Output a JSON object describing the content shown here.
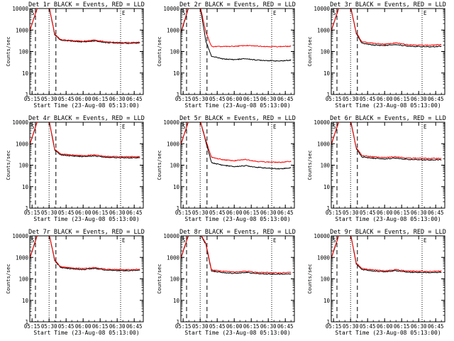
{
  "colors": {
    "events": "#000000",
    "lld": "#ff0000",
    "background": "#ffffff"
  },
  "chart_data": [
    {
      "type": "line",
      "title": "Det 1r BLACK = Events, RED = LLD",
      "xlabel": "Start Time (23-Aug-08 05:13:00)",
      "ylabel": "Counts/sec",
      "y_scale": "log",
      "ylim": [
        1,
        10000
      ],
      "x_ticks": [
        "05:15",
        "05:30",
        "05:45",
        "06:00",
        "06:15",
        "06:30",
        "06:45"
      ],
      "y_ticks": [
        "1",
        "10",
        "100",
        "1000",
        "10000"
      ],
      "markers": [
        "S",
        "E"
      ],
      "x": [
        "05:13",
        "05:20",
        "05:25",
        "05:30",
        "05:35",
        "05:40",
        "05:50",
        "06:00",
        "06:10",
        "06:20",
        "06:30",
        "06:40",
        "06:50"
      ],
      "series": [
        {
          "name": "Events",
          "values": [
            900,
            12000,
            12000,
            12000,
            600,
            340,
            300,
            280,
            310,
            260,
            250,
            240,
            250
          ]
        },
        {
          "name": "LLD",
          "values": [
            950,
            12500,
            12500,
            12500,
            650,
            360,
            320,
            300,
            340,
            280,
            270,
            260,
            270
          ]
        }
      ]
    },
    {
      "type": "line",
      "title": "Det 2r BLACK = Events, RED = LLD",
      "xlabel": "Start Time (23-Aug-08 05:13:00)",
      "ylabel": "Counts/sec",
      "y_scale": "log",
      "ylim": [
        1,
        10000
      ],
      "x_ticks": [
        "05:15",
        "05:30",
        "05:45",
        "06:00",
        "06:15",
        "06:30",
        "06:45"
      ],
      "y_ticks": [
        "1",
        "10",
        "100",
        "1000",
        "10000"
      ],
      "markers": [
        "S",
        "E"
      ],
      "x": [
        "05:13",
        "05:20",
        "05:25",
        "05:30",
        "05:35",
        "05:40",
        "05:50",
        "06:00",
        "06:10",
        "06:20",
        "06:30",
        "06:40",
        "06:50"
      ],
      "series": [
        {
          "name": "Events",
          "values": [
            700,
            12000,
            12000,
            12000,
            300,
            60,
            45,
            42,
            46,
            40,
            38,
            36,
            40
          ]
        },
        {
          "name": "LLD",
          "values": [
            800,
            12500,
            12500,
            12500,
            800,
            170,
            170,
            175,
            190,
            180,
            170,
            170,
            175
          ]
        }
      ]
    },
    {
      "type": "line",
      "title": "Det 3r BLACK = Events, RED = LLD",
      "xlabel": "Start Time (23-Aug-08 05:13:00)",
      "ylabel": "Counts/sec",
      "y_scale": "log",
      "ylim": [
        1,
        10000
      ],
      "x_ticks": [
        "05:15",
        "05:30",
        "05:45",
        "06:00",
        "06:15",
        "06:30",
        "06:45"
      ],
      "y_ticks": [
        "1",
        "10",
        "100",
        "1000",
        "10000"
      ],
      "markers": [
        "S",
        "E"
      ],
      "x": [
        "05:13",
        "05:20",
        "05:25",
        "05:30",
        "05:35",
        "05:40",
        "05:50",
        "06:00",
        "06:10",
        "06:20",
        "06:30",
        "06:40",
        "06:50"
      ],
      "series": [
        {
          "name": "Events",
          "values": [
            900,
            12000,
            12000,
            12000,
            700,
            240,
            200,
            190,
            210,
            180,
            170,
            165,
            175
          ]
        },
        {
          "name": "LLD",
          "values": [
            950,
            12500,
            12500,
            12500,
            750,
            280,
            240,
            220,
            250,
            210,
            200,
            195,
            210
          ]
        }
      ]
    },
    {
      "type": "line",
      "title": "Det 4r BLACK = Events, RED = LLD",
      "xlabel": "Start Time (23-Aug-08 05:13:00)",
      "ylabel": "Counts/sec",
      "y_scale": "log",
      "ylim": [
        1,
        10000
      ],
      "x_ticks": [
        "05:15",
        "05:30",
        "05:45",
        "06:00",
        "06:15",
        "06:30",
        "06:45"
      ],
      "y_ticks": [
        "1",
        "10",
        "100",
        "1000",
        "10000"
      ],
      "markers": [
        "S",
        "E"
      ],
      "x": [
        "05:13",
        "05:20",
        "05:25",
        "05:30",
        "05:35",
        "05:40",
        "05:50",
        "06:00",
        "06:10",
        "06:20",
        "06:30",
        "06:40",
        "06:50"
      ],
      "series": [
        {
          "name": "Events",
          "values": [
            900,
            12000,
            12000,
            12000,
            500,
            300,
            270,
            250,
            270,
            235,
            225,
            220,
            225
          ]
        },
        {
          "name": "LLD",
          "values": [
            950,
            12500,
            12500,
            12500,
            550,
            330,
            300,
            275,
            300,
            260,
            250,
            245,
            250
          ]
        }
      ]
    },
    {
      "type": "line",
      "title": "Det 5r BLACK = Events, RED = LLD",
      "xlabel": "Start Time (23-Aug-08 05:13:00)",
      "ylabel": "Counts/sec",
      "y_scale": "log",
      "ylim": [
        1,
        10000
      ],
      "x_ticks": [
        "05:15",
        "05:30",
        "05:45",
        "06:00",
        "06:15",
        "06:30",
        "06:45"
      ],
      "y_ticks": [
        "1",
        "10",
        "100",
        "1000",
        "10000"
      ],
      "markers": [
        "S",
        "E"
      ],
      "x": [
        "05:13",
        "05:20",
        "05:25",
        "05:30",
        "05:35",
        "05:40",
        "05:50",
        "06:00",
        "06:10",
        "06:20",
        "06:30",
        "06:40",
        "06:50"
      ],
      "series": [
        {
          "name": "Events",
          "values": [
            900,
            12000,
            12000,
            12000,
            1200,
            130,
            100,
            85,
            95,
            80,
            72,
            68,
            75
          ]
        },
        {
          "name": "LLD",
          "values": [
            950,
            12500,
            12500,
            12500,
            1400,
            230,
            180,
            160,
            185,
            150,
            140,
            135,
            150
          ]
        }
      ]
    },
    {
      "type": "line",
      "title": "Det 6r BLACK = Events, RED = LLD",
      "xlabel": "Start Time (23-Aug-08 05:13:00)",
      "ylabel": "Counts/sec",
      "y_scale": "log",
      "ylim": [
        1,
        10000
      ],
      "x_ticks": [
        "05:15",
        "05:30",
        "05:45",
        "06:00",
        "06:15",
        "06:30",
        "06:45"
      ],
      "y_ticks": [
        "1",
        "10",
        "100",
        "1000",
        "10000"
      ],
      "markers": [
        "S",
        "E"
      ],
      "x": [
        "05:13",
        "05:20",
        "05:25",
        "05:30",
        "05:35",
        "05:40",
        "05:50",
        "06:00",
        "06:10",
        "06:20",
        "06:30",
        "06:40",
        "06:50"
      ],
      "series": [
        {
          "name": "Events",
          "values": [
            900,
            12000,
            12000,
            12000,
            600,
            240,
            210,
            195,
            215,
            185,
            180,
            175,
            180
          ]
        },
        {
          "name": "LLD",
          "values": [
            950,
            12500,
            12500,
            12500,
            650,
            280,
            245,
            225,
            250,
            215,
            210,
            205,
            210
          ]
        }
      ]
    },
    {
      "type": "line",
      "title": "Det 7r BLACK = Events, RED = LLD",
      "xlabel": "Start Time (23-Aug-08 05:13:00)",
      "ylabel": "Counts/sec",
      "y_scale": "log",
      "ylim": [
        1,
        10000
      ],
      "x_ticks": [
        "05:15",
        "05:30",
        "05:45",
        "06:00",
        "06:15",
        "06:30",
        "06:45"
      ],
      "y_ticks": [
        "1",
        "10",
        "100",
        "1000",
        "10000"
      ],
      "markers": [
        "S",
        "E"
      ],
      "x": [
        "05:13",
        "05:20",
        "05:25",
        "05:30",
        "05:35",
        "05:40",
        "05:50",
        "06:00",
        "06:10",
        "06:20",
        "06:30",
        "06:40",
        "06:50"
      ],
      "series": [
        {
          "name": "Events",
          "values": [
            900,
            12000,
            12000,
            12000,
            700,
            340,
            290,
            270,
            310,
            255,
            245,
            240,
            255
          ]
        },
        {
          "name": "LLD",
          "values": [
            950,
            12500,
            12500,
            12500,
            750,
            370,
            320,
            300,
            340,
            280,
            270,
            265,
            280
          ]
        }
      ]
    },
    {
      "type": "line",
      "title": "Det 8r BLACK = Events, RED = LLD",
      "xlabel": "Start Time (23-Aug-08 05:13:00)",
      "ylabel": "Counts/sec",
      "y_scale": "log",
      "ylim": [
        1,
        10000
      ],
      "x_ticks": [
        "05:15",
        "05:30",
        "05:45",
        "06:00",
        "06:15",
        "06:30",
        "06:45"
      ],
      "y_ticks": [
        "1",
        "10",
        "100",
        "1000",
        "10000"
      ],
      "markers": [
        "S",
        "E"
      ],
      "x": [
        "05:13",
        "05:20",
        "05:25",
        "05:30",
        "05:35",
        "05:40",
        "05:50",
        "06:00",
        "06:10",
        "06:20",
        "06:30",
        "06:40",
        "06:50"
      ],
      "series": [
        {
          "name": "Events",
          "values": [
            900,
            12000,
            12000,
            12000,
            4000,
            230,
            195,
            180,
            200,
            175,
            168,
            165,
            170
          ]
        },
        {
          "name": "LLD",
          "values": [
            950,
            12500,
            12500,
            12500,
            4500,
            260,
            225,
            210,
            230,
            200,
            195,
            190,
            200
          ]
        }
      ]
    },
    {
      "type": "line",
      "title": "Det 9r BLACK = Events, RED = LLD",
      "xlabel": "Start Time (23-Aug-08 05:13:00)",
      "ylabel": "Counts/sec",
      "y_scale": "log",
      "ylim": [
        1,
        10000
      ],
      "x_ticks": [
        "05:15",
        "05:30",
        "05:45",
        "06:00",
        "06:15",
        "06:30",
        "06:45"
      ],
      "y_ticks": [
        "1",
        "10",
        "100",
        "1000",
        "10000"
      ],
      "markers": [
        "S",
        "E"
      ],
      "x": [
        "05:13",
        "05:20",
        "05:25",
        "05:30",
        "05:35",
        "05:40",
        "05:50",
        "06:00",
        "06:10",
        "06:20",
        "06:30",
        "06:40",
        "06:50"
      ],
      "series": [
        {
          "name": "Events",
          "values": [
            900,
            12000,
            12000,
            12000,
            500,
            270,
            230,
            215,
            240,
            205,
            200,
            195,
            205
          ]
        },
        {
          "name": "LLD",
          "values": [
            950,
            12500,
            12500,
            12500,
            550,
            300,
            260,
            240,
            270,
            230,
            225,
            220,
            230
          ]
        }
      ]
    }
  ]
}
